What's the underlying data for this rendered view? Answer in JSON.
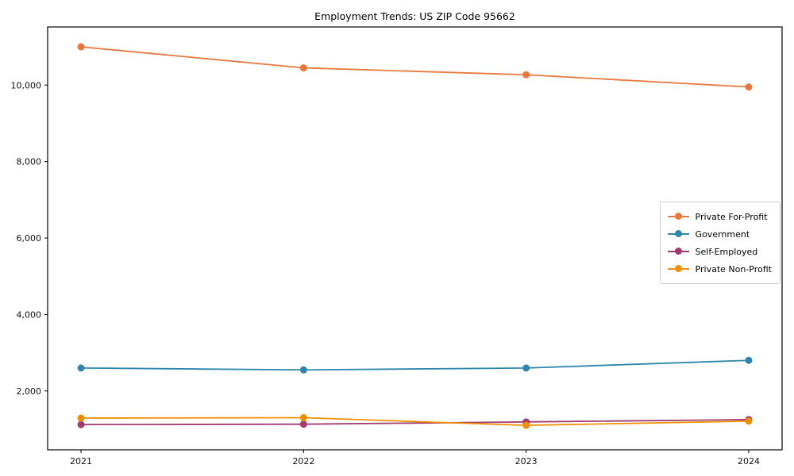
{
  "chart_data": {
    "type": "line",
    "title": "Employment Trends: US ZIP Code 95662",
    "x": [
      2021,
      2022,
      2023,
      2024
    ],
    "x_tick_labels": [
      "2021",
      "2022",
      "2023",
      "2024"
    ],
    "series": [
      {
        "name": "Private For-Profit",
        "color": "#E8793E",
        "values": [
          11000,
          10450,
          10270,
          9950
        ]
      },
      {
        "name": "Government",
        "color": "#2E86AB",
        "values": [
          2600,
          2550,
          2600,
          2800
        ]
      },
      {
        "name": "Self-Employed",
        "color": "#A23B72",
        "values": [
          1120,
          1130,
          1190,
          1250
        ]
      },
      {
        "name": "Private Non-Profit",
        "color": "#F18F01",
        "values": [
          1290,
          1300,
          1100,
          1210
        ]
      }
    ],
    "xlim": [
      2020.85,
      2024.15
    ],
    "ylim": [
      460,
      11520
    ],
    "y_ticks": [
      2000,
      4000,
      6000,
      8000,
      10000
    ],
    "y_tick_labels": [
      "2,000",
      "4,000",
      "6,000",
      "8,000",
      "10,000"
    ],
    "xlabel": "",
    "ylabel": "",
    "grid": false,
    "legend_position": "center right",
    "axis_color": "#000000",
    "tick_label_color": "#111111"
  }
}
